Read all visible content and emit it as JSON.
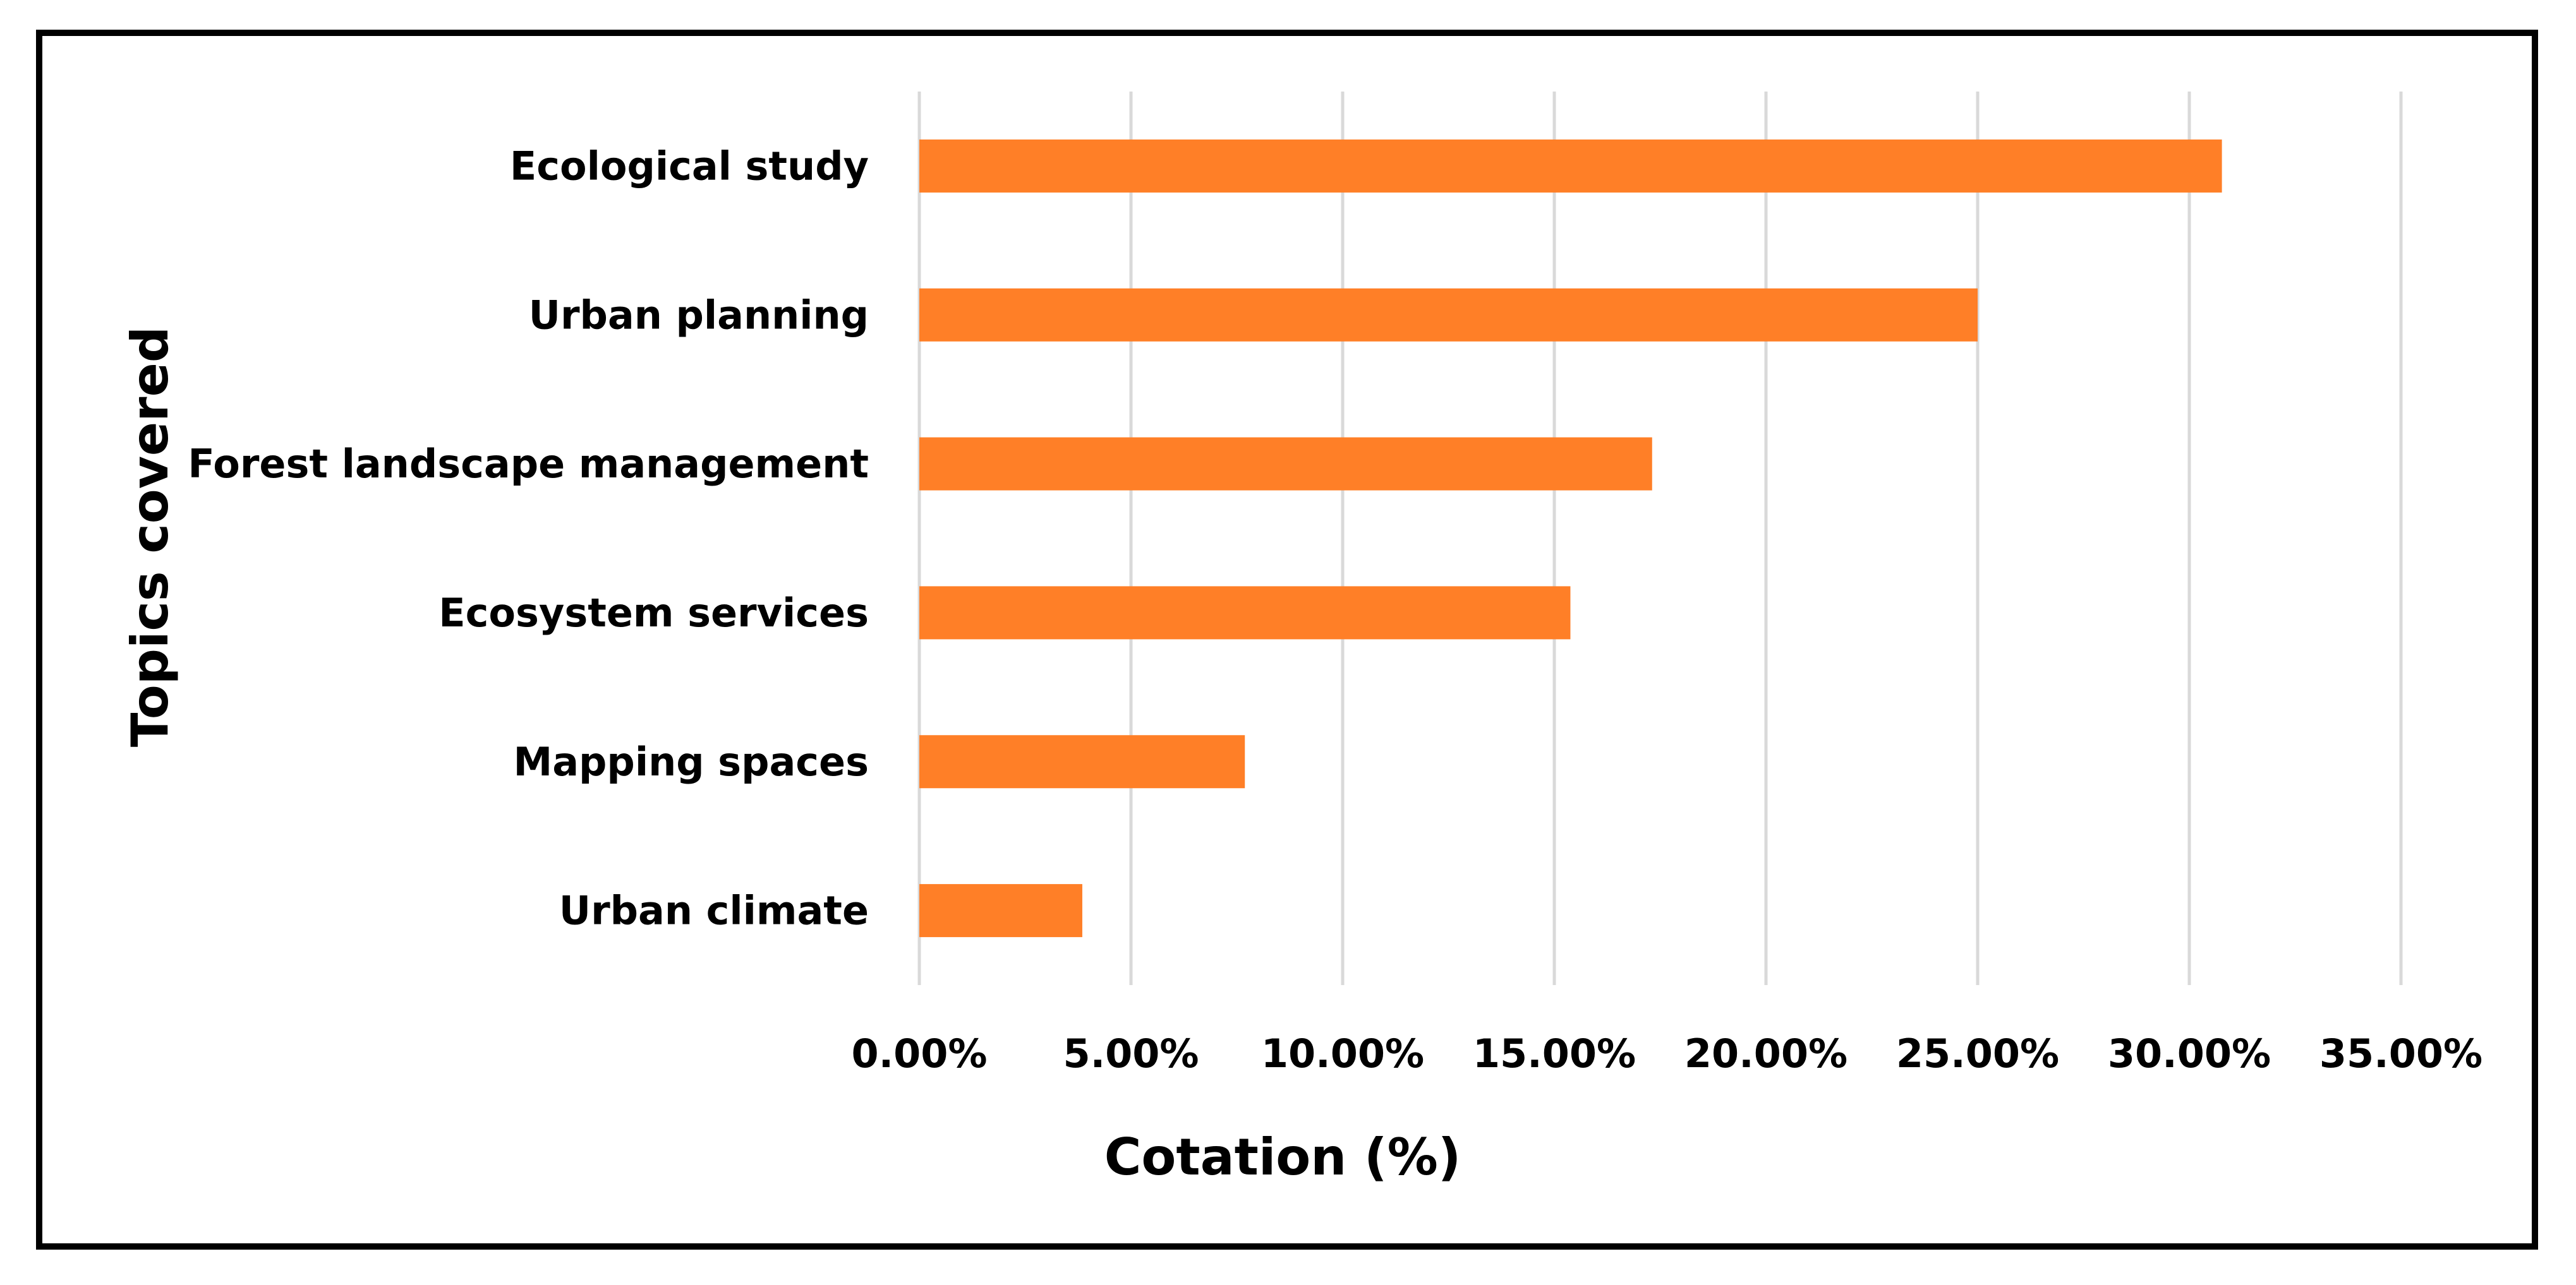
{
  "chart_data": {
    "type": "bar",
    "orientation": "horizontal",
    "title": "",
    "xlabel": "Cotation (%)",
    "ylabel": "Topics covered",
    "categories": [
      "Ecological study",
      "Urban planning",
      "Forest landscape management",
      "Ecosystem services",
      "Mapping spaces",
      "Urban climate"
    ],
    "values": [
      30.77,
      25.0,
      17.31,
      15.38,
      7.69,
      3.85
    ],
    "xlim": [
      0,
      35
    ],
    "xticks": [
      0,
      5,
      10,
      15,
      20,
      25,
      30,
      35
    ],
    "xtick_labels": [
      "0.00%",
      "5.00%",
      "10.00%",
      "15.00%",
      "20.00%",
      "25.00%",
      "30.00%",
      "35.00%"
    ],
    "grid": true,
    "legend": "none",
    "colors": {
      "bar": "#FF7F27",
      "grid": "#D9D9D9",
      "border": "#000000"
    }
  }
}
